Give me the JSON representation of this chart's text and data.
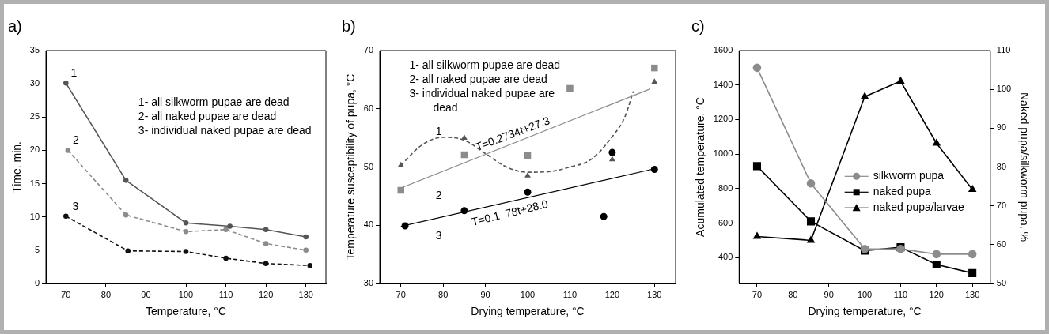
{
  "chart_data": [
    {
      "type": "line",
      "title": "a)",
      "xlabel": "Temperature, °C",
      "ylabel": "Time, min.",
      "xlim": [
        65,
        135
      ],
      "xticks": [
        70,
        80,
        90,
        100,
        110,
        120,
        130
      ],
      "ylim": [
        0,
        35
      ],
      "yticks": [
        0,
        5,
        10,
        15,
        20,
        25,
        30,
        35
      ],
      "grid": false,
      "marker": "circle",
      "series": [
        {
          "name": "1",
          "color": "#555555",
          "line_style": "solid",
          "x": [
            70,
            85,
            100,
            111,
            120,
            130
          ],
          "values": [
            30.1,
            15.5,
            9.1,
            8.6,
            8.1,
            7.0
          ]
        },
        {
          "name": "2",
          "color": "#8c8c8c",
          "line_style": "dashed",
          "x": [
            70.5,
            85,
            100,
            110,
            120,
            130
          ],
          "values": [
            20.0,
            10.3,
            7.8,
            8.1,
            6.0,
            5.0
          ]
        },
        {
          "name": "3",
          "color": "#111111",
          "line_style": "dashed",
          "x": [
            70,
            85.5,
            100,
            110,
            120,
            131
          ],
          "values": [
            10.1,
            4.9,
            4.8,
            3.8,
            3.0,
            2.7
          ]
        }
      ],
      "annotations": [
        "1- all silkworm pupae are dead",
        "2- all naked pupae are dead",
        "3- individual naked pupae are dead"
      ]
    },
    {
      "type": "scatter",
      "title": "b)",
      "xlabel": "Drying temperature, °C",
      "ylabel": "Temperature susceptibility of pupa, °C",
      "xlim": [
        65,
        135
      ],
      "xticks": [
        70,
        80,
        90,
        100,
        110,
        120,
        130
      ],
      "ylim": [
        30,
        70
      ],
      "yticks": [
        30,
        40,
        50,
        60,
        70
      ],
      "grid": false,
      "series": [
        {
          "color": "#8c8c8c",
          "marker": "square",
          "x": [
            70,
            85,
            100,
            110,
            130
          ],
          "values": [
            46.0,
            52.1,
            52.0,
            63.5,
            67.0
          ]
        },
        {
          "color": "#555555",
          "marker": "triangle",
          "x": [
            70,
            85,
            100,
            120,
            130
          ],
          "values": [
            50.3,
            55.0,
            48.5,
            51.3,
            64.6
          ]
        },
        {
          "color": "#000000",
          "marker": "circle",
          "x": [
            71,
            85,
            100,
            118,
            120,
            130
          ],
          "values": [
            39.9,
            42.5,
            45.7,
            41.5,
            52.5,
            49.6
          ]
        },
        {
          "name": "2",
          "type": "line",
          "color": "#8c8c8c",
          "marker": "none",
          "line_style": "solid",
          "x": [
            70,
            129
          ],
          "values": [
            46.4,
            63.4
          ]
        },
        {
          "name": "3",
          "type": "line",
          "color": "#000000",
          "marker": "none",
          "line_style": "solid",
          "x": [
            70,
            130
          ],
          "values": [
            39.8,
            49.7
          ]
        },
        {
          "name": "1",
          "type": "line",
          "color": "#555555",
          "marker": "none",
          "line_style": "dashed",
          "x": [
            70,
            75,
            80,
            85,
            90,
            95,
            100,
            105,
            110,
            115,
            120,
            123,
            125
          ],
          "values": [
            50.3,
            53.8,
            55.1,
            54.6,
            52.3,
            50.0,
            49.1,
            49.2,
            50.0,
            51.3,
            55.2,
            58.6,
            63.0
          ]
        }
      ],
      "annotations": [
        "1- all silkworm pupae are dead",
        "2- all naked pupae are dead",
        "3- individual naked pupae are dead",
        "T=0.2734t+27.3",
        "T=0.1  78t+28.0"
      ]
    },
    {
      "type": "line",
      "title": "c)",
      "xlabel": "Drying temperature, °C",
      "ylabel": "Acumulated temperature, °C",
      "y2label": "Naked pupa/silkworm pupa, %",
      "xlim": [
        65,
        135
      ],
      "xticks": [
        70,
        80,
        90,
        100,
        110,
        120,
        130
      ],
      "ylim": [
        250,
        1600
      ],
      "yticks": [
        400,
        600,
        800,
        1000,
        1200,
        1400,
        1600
      ],
      "y2lim": [
        50,
        110
      ],
      "y2ticks": [
        50,
        60,
        70,
        80,
        90,
        100,
        110
      ],
      "grid": false,
      "legend": "right",
      "x": [
        70,
        85,
        100,
        110,
        120,
        130
      ],
      "series": [
        {
          "name": "silkworm pupa",
          "color": "#8c8c8c",
          "marker": "circle",
          "values": [
            1500,
            830,
            450,
            450,
            420,
            420
          ]
        },
        {
          "name": "naked pupa",
          "color": "#000000",
          "marker": "square",
          "values": [
            930,
            610,
            440,
            460,
            360,
            310
          ]
        },
        {
          "name": "naked pupa/larvae",
          "color": "#000000",
          "marker": "triangle",
          "axis": "y2",
          "values": [
            62.1,
            61.1,
            98.1,
            102.1,
            86.1,
            74.2
          ]
        }
      ]
    }
  ]
}
